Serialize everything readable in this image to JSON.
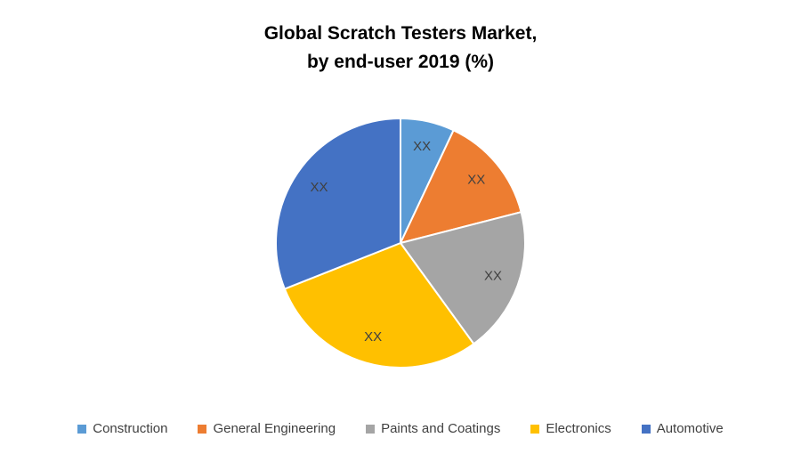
{
  "title": {
    "line1": "Global Scratch Testers Market,",
    "line2": "by end-user 2019 (%)"
  },
  "chart_data": {
    "type": "pie",
    "title": "Global Scratch Testers Market, by end-user 2019 (%)",
    "legend_position": "bottom",
    "start_angle_deg": 0,
    "direction": "clockwise",
    "slices": [
      {
        "label": "Construction",
        "data_label": "XX",
        "value_pct_est": 7,
        "color": "#5B9BD5"
      },
      {
        "label": "General Engineering",
        "data_label": "XX",
        "value_pct_est": 14,
        "color": "#ED7D31"
      },
      {
        "label": "Paints and Coatings",
        "data_label": "XX",
        "value_pct_est": 19,
        "color": "#A5A5A5"
      },
      {
        "label": "Electronics",
        "data_label": "XX",
        "value_pct_est": 29,
        "color": "#FFC000"
      },
      {
        "label": "Automotive",
        "data_label": "XX",
        "value_pct_est": 31,
        "color": "#4472C4"
      }
    ]
  }
}
